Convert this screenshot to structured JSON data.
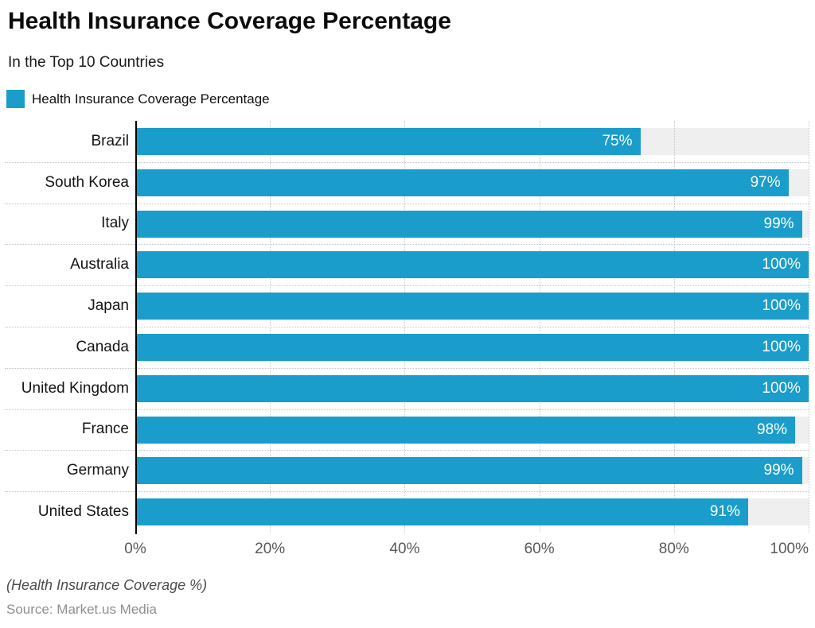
{
  "header": {
    "title": "Health Insurance Coverage Percentage",
    "subtitle": "In the Top 10 Countries"
  },
  "legend": {
    "label": "Health Insurance Coverage Percentage"
  },
  "chart_data": {
    "type": "bar",
    "orientation": "horizontal",
    "title": "Health Insurance Coverage Percentage",
    "subtitle": "In the Top 10 Countries",
    "series_name": "Health Insurance Coverage Percentage",
    "categories": [
      "Brazil",
      "South Korea",
      "Italy",
      "Australia",
      "Japan",
      "Canada",
      "United Kingdom",
      "France",
      "Germany",
      "United States"
    ],
    "values": [
      75,
      97,
      99,
      100,
      100,
      100,
      100,
      98,
      99,
      91
    ],
    "value_labels": [
      "75%",
      "97%",
      "99%",
      "100%",
      "100%",
      "100%",
      "100%",
      "98%",
      "99%",
      "91%"
    ],
    "x_ticks": [
      {
        "value": 0,
        "label": "0%"
      },
      {
        "value": 20,
        "label": "20%"
      },
      {
        "value": 40,
        "label": "40%"
      },
      {
        "value": 60,
        "label": "60%"
      },
      {
        "value": 80,
        "label": "80%"
      },
      {
        "value": 100,
        "label": "100%"
      }
    ],
    "xlim": [
      0,
      100
    ],
    "grid": true,
    "legend_position": "top-left",
    "xlabel": "",
    "ylabel": ""
  },
  "footer": {
    "axis_note": "(Health Insurance Coverage %)",
    "source": "Source: Market.us Media"
  },
  "colors": {
    "bar": "#1a9dca",
    "track": "#efefef",
    "grid": "#c6c6c6",
    "axis": "#000000",
    "value_text": "#ffffff"
  }
}
